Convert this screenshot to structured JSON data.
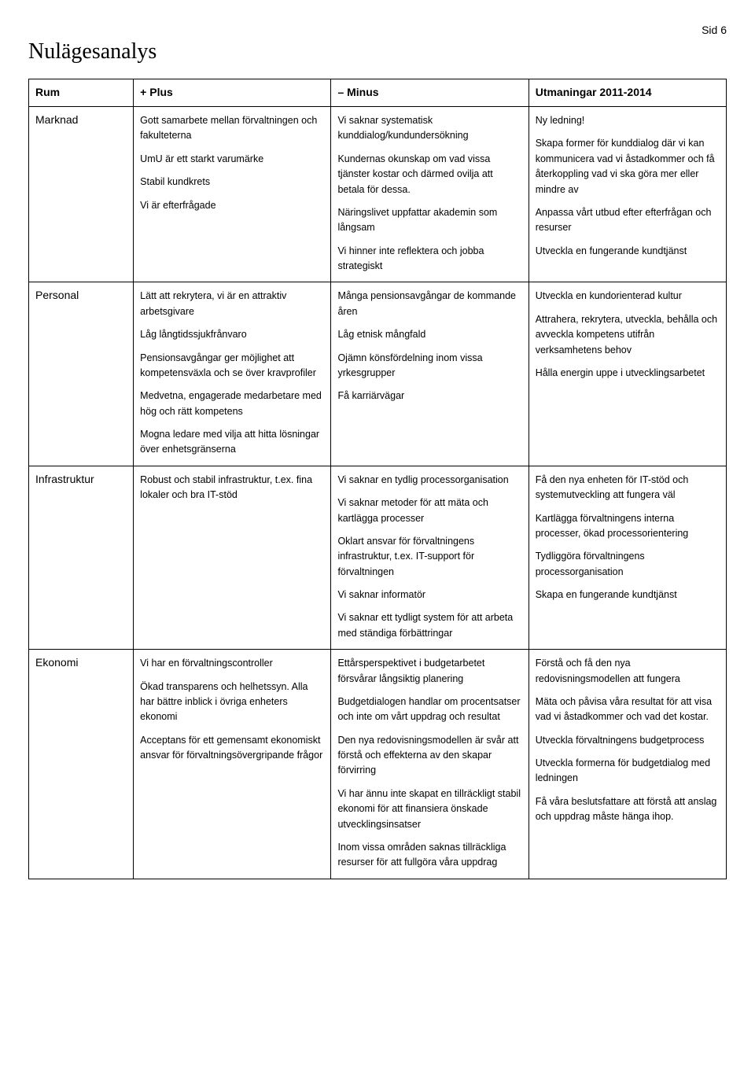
{
  "page_label": "Sid 6",
  "title": "Nulägesanalys",
  "headers": [
    "Rum",
    "+ Plus",
    "– Minus",
    "Utmaningar 2011-2014"
  ],
  "rows": [
    {
      "label": "Marknad",
      "plus": [
        "Gott samarbete mellan förvaltningen och fakulteterna",
        "UmU är ett starkt varumärke",
        "Stabil kundkrets",
        "Vi är efterfrågade"
      ],
      "minus": [
        "Vi saknar systematisk kunddialog/kundundersökning",
        "Kundernas okunskap om vad vissa tjänster kostar och därmed ovilja att betala för dessa.",
        "Näringslivet uppfattar akademin som långsam",
        "Vi hinner inte reflektera och jobba strategiskt"
      ],
      "challenges": [
        "Ny ledning!",
        "Skapa former för kunddialog där vi kan kommunicera vad vi åstadkommer och få återkoppling vad vi ska göra mer eller mindre av",
        "Anpassa vårt utbud efter efterfrågan och resurser",
        "Utveckla en fungerande kundtjänst"
      ]
    },
    {
      "label": "Personal",
      "plus": [
        "Lätt att rekrytera, vi är en attraktiv arbetsgivare",
        "Låg långtidssjukfrånvaro",
        "Pensionsavgångar ger möjlighet att kompetensväxla och se över kravprofiler",
        "Medvetna, engagerade medarbetare med hög och rätt kompetens",
        "Mogna ledare med vilja att hitta lösningar över enhetsgränserna"
      ],
      "minus": [
        "Många pensionsavgångar de kommande åren",
        "Låg etnisk mångfald",
        "Ojämn könsfördelning inom vissa yrkesgrupper",
        "Få karriärvägar"
      ],
      "challenges": [
        "Utveckla en kundorienterad kultur",
        "Attrahera, rekrytera, utveckla, behålla och avveckla kompetens utifrån verksamhetens behov",
        "Hålla energin uppe i utvecklingsarbetet"
      ]
    },
    {
      "label": "Infrastruktur",
      "plus": [
        "Robust och stabil infrastruktur, t.ex. fina lokaler och bra IT-stöd"
      ],
      "minus": [
        "Vi saknar en tydlig processorganisation",
        "Vi saknar metoder för att mäta och kartlägga processer",
        "Oklart ansvar för förvaltningens infrastruktur, t.ex. IT-support för förvaltningen",
        "Vi saknar informatör",
        "Vi saknar ett tydligt system för att arbeta med ständiga förbättringar"
      ],
      "challenges": [
        "Få den nya enheten för IT-stöd och systemutveckling att fungera väl",
        "Kartlägga förvaltningens interna processer, ökad processorientering",
        "Tydliggöra förvaltningens processorganisation",
        "Skapa en fungerande kundtjänst"
      ]
    },
    {
      "label": "Ekonomi",
      "plus": [
        "Vi har en förvaltningscontroller",
        "Ökad transparens och helhetssyn. Alla har bättre inblick i övriga enheters ekonomi",
        "Acceptans för ett gemensamt ekonomiskt ansvar för förvaltningsövergripande frågor"
      ],
      "minus": [
        "Ettårsperspektivet i budgetarbetet försvårar långsiktig planering",
        "Budgetdialogen handlar om procentsatser och inte om vårt uppdrag och resultat",
        "Den nya redovisningsmodellen är svår att förstå och effekterna av den skapar förvirring",
        "Vi har ännu inte skapat en tillräckligt stabil ekonomi för att finansiera önskade utvecklingsinsatser",
        "Inom vissa områden saknas tillräckliga resurser för att fullgöra våra uppdrag"
      ],
      "challenges": [
        "Förstå och få den nya redovisningsmodellen att fungera",
        "Mäta och påvisa våra resultat för att visa vad vi åstadkommer och vad det kostar.",
        "Utveckla förvaltningens budgetprocess",
        "Utveckla formerna för budgetdialog med ledningen",
        "Få våra beslutsfattare att förstå att anslag och uppdrag måste hänga ihop."
      ]
    }
  ]
}
